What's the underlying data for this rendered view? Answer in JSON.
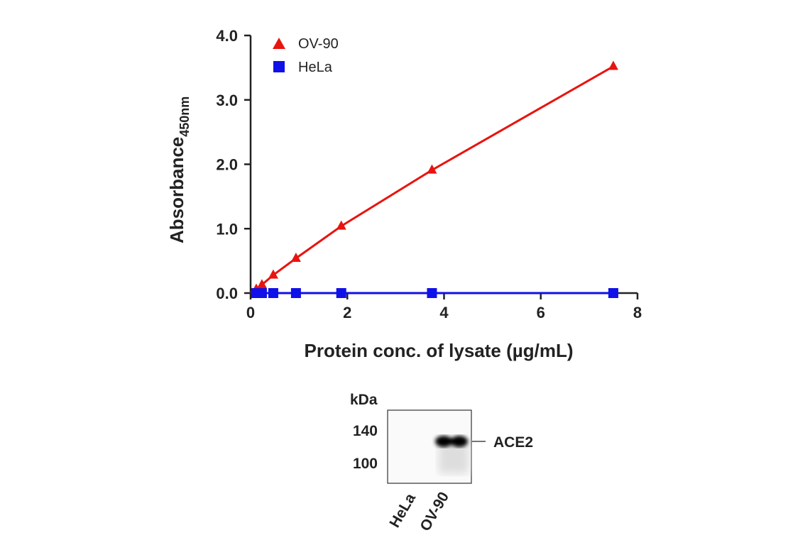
{
  "chart_data": {
    "type": "line",
    "xlabel": "Protein conc. of lysate (µg/mL)",
    "ylabel": "Absorbance",
    "ylabel_sub": "450nm",
    "xlim": [
      0,
      8
    ],
    "ylim": [
      0,
      4
    ],
    "xticks": [
      "0",
      "2",
      "4",
      "6",
      "8"
    ],
    "yticks": [
      "0.0",
      "1.0",
      "2.0",
      "3.0",
      "4.0"
    ],
    "legend_position": "top-left",
    "grid": false,
    "series": [
      {
        "name": "OV-90",
        "marker": "triangle",
        "color": "#e8140f",
        "x": [
          0.117,
          0.234,
          0.469,
          0.938,
          1.875,
          3.75,
          7.5
        ],
        "y": [
          0.06,
          0.13,
          0.28,
          0.54,
          1.04,
          1.91,
          3.52
        ]
      },
      {
        "name": "HeLa",
        "marker": "square",
        "color": "#1010e8",
        "x": [
          0.117,
          0.234,
          0.469,
          0.938,
          1.875,
          3.75,
          7.5
        ],
        "y": [
          0,
          0,
          0,
          0,
          0,
          0,
          0
        ]
      }
    ]
  },
  "blot": {
    "unit_label": "kDa",
    "markers": [
      "140",
      "100"
    ],
    "band_label": "ACE2",
    "lanes": [
      "HeLa",
      "OV-90"
    ]
  }
}
